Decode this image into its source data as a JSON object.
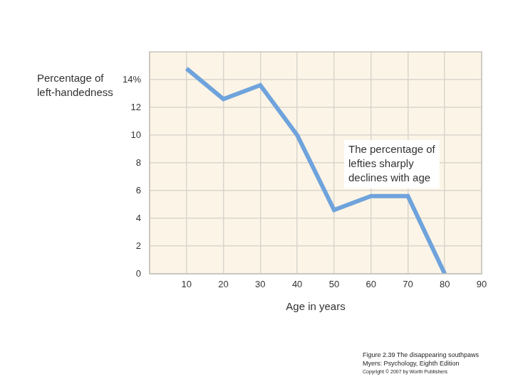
{
  "chart_data": {
    "type": "line",
    "ylabel": [
      "Percentage of",
      "left-handedness"
    ],
    "xlabel": "Age in years",
    "x": [
      10,
      20,
      30,
      40,
      50,
      60,
      70,
      80
    ],
    "values": [
      14.8,
      12.6,
      13.6,
      10,
      4.6,
      5.6,
      5.6,
      0
    ],
    "color": "#6fa3dc",
    "xlim": [
      0,
      90
    ],
    "xticks": [
      10,
      20,
      30,
      40,
      50,
      60,
      70,
      80,
      90
    ],
    "ylim": [
      0,
      16
    ],
    "yticks": [
      0,
      2,
      4,
      6,
      8,
      10,
      12,
      {
        "value": 14,
        "label": "14%"
      }
    ],
    "grid": true,
    "annotation": [
      "The percentage of",
      "lefties sharply",
      "declines with age"
    ],
    "caption": [
      "Figure 2.39 The disappearing southpaws",
      "Myers: Psychology, Eighth Edition",
      "Copyright © 2007 by Worth Publishers"
    ]
  }
}
